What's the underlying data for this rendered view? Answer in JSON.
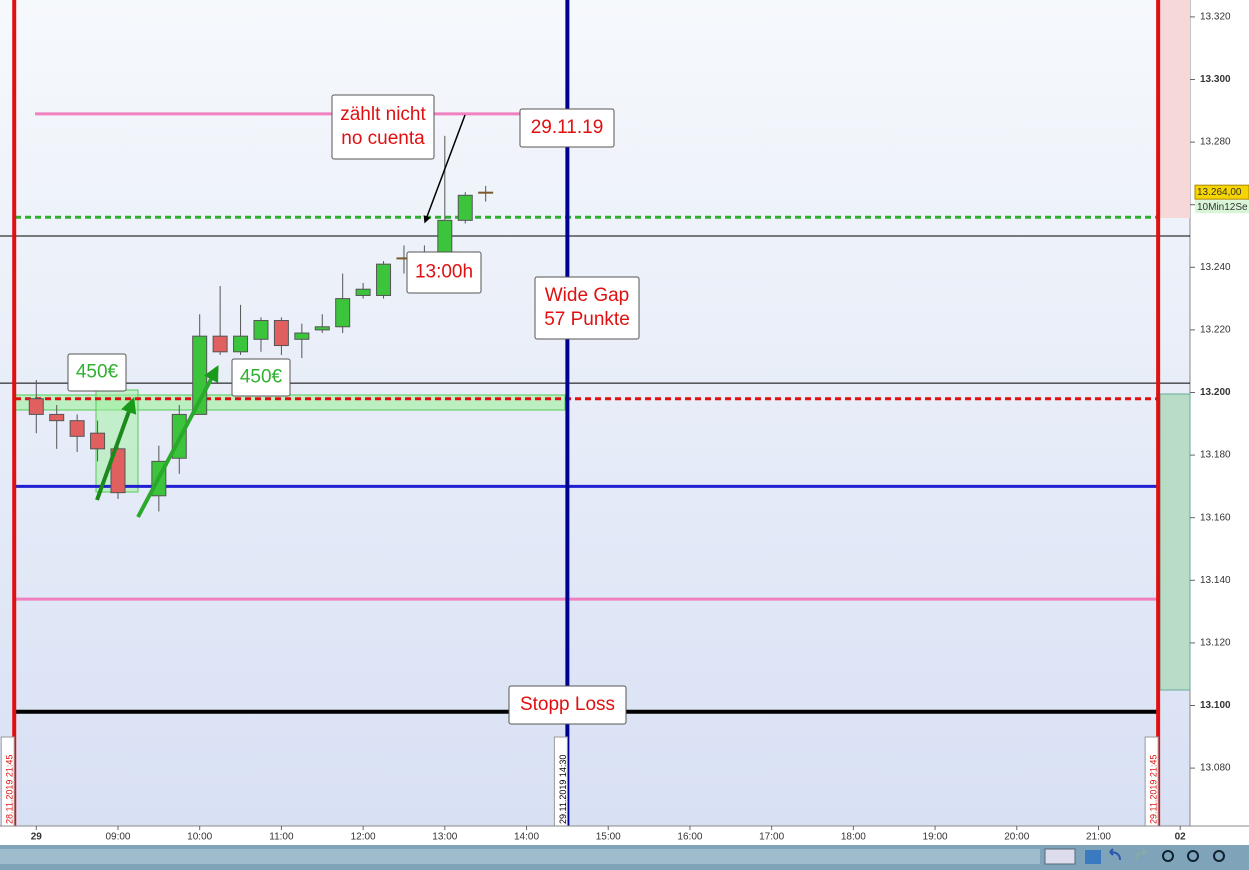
{
  "chart_data": {
    "type": "candlestick",
    "x": [
      8,
      8.25,
      8.5,
      8.75,
      9,
      9.5,
      9.75,
      10,
      10.25,
      10.5,
      10.75,
      11,
      11.25,
      11.5,
      11.75,
      12,
      12.25,
      12.5,
      12.75,
      13,
      13.25,
      13.5
    ],
    "open": [
      13198,
      13193,
      13191,
      13187,
      13182,
      13167,
      13179,
      13193,
      13218,
      13213,
      13217,
      13223,
      13217,
      13220,
      13221,
      13231,
      13231,
      13243,
      13243,
      13243,
      13255,
      13264
    ],
    "close": [
      13193,
      13191,
      13186,
      13182,
      13168,
      13178,
      13193,
      13218,
      13213,
      13218,
      13223,
      13215,
      13219,
      13221,
      13230,
      13233,
      13241,
      13243,
      13244,
      13255,
      13263,
      13264
    ],
    "high": [
      13204,
      13196,
      13193,
      13191,
      13185,
      13183,
      13196,
      13225,
      13234,
      13228,
      13224,
      13224,
      13222,
      13225,
      13238,
      13235,
      13242,
      13247,
      13247,
      13282,
      13264,
      13266
    ],
    "low": [
      13187,
      13182,
      13181,
      13178,
      13166,
      13162,
      13174,
      13193,
      13212,
      13212,
      13213,
      13212,
      13211,
      13219,
      13219,
      13230,
      13230,
      13238,
      13242,
      13242,
      13254,
      13261
    ],
    "up_color": "#3cc43c",
    "down_color": "#e06060",
    "xlim": [
      7.556,
      22.12
    ],
    "ylim": [
      13061.5,
      13325.4
    ],
    "xticks": [
      {
        "value": 8,
        "label": "29"
      },
      {
        "value": 9,
        "label": "09:00"
      },
      {
        "value": 10,
        "label": "10:00"
      },
      {
        "value": 11,
        "label": "11:00"
      },
      {
        "value": 12,
        "label": "12:00"
      },
      {
        "value": 13,
        "label": "13:00"
      },
      {
        "value": 14,
        "label": "14:00"
      },
      {
        "value": 15,
        "label": "15:00"
      },
      {
        "value": 16,
        "label": "16:00"
      },
      {
        "value": 17,
        "label": "17:00"
      },
      {
        "value": 18,
        "label": "18:00"
      },
      {
        "value": 19,
        "label": "19:00"
      },
      {
        "value": 20,
        "label": "20:00"
      },
      {
        "value": 21,
        "label": "21:00"
      },
      {
        "value": 22,
        "label": "02"
      }
    ],
    "yticks": [
      {
        "value": 13080,
        "label": "13.080"
      },
      {
        "value": 13100,
        "label": "13.100"
      },
      {
        "value": 13120,
        "label": "13.120"
      },
      {
        "value": 13140,
        "label": "13.140"
      },
      {
        "value": 13160,
        "label": "13.160"
      },
      {
        "value": 13180,
        "label": "13.180"
      },
      {
        "value": 13200,
        "label": "13.200"
      },
      {
        "value": 13220,
        "label": "13.220"
      },
      {
        "value": 13240,
        "label": "13.240"
      },
      {
        "value": 13260,
        "label": "13.260"
      },
      {
        "value": 13280,
        "label": "13.280"
      },
      {
        "value": 13300,
        "label": "13.300"
      },
      {
        "value": 13320,
        "label": "13.320"
      }
    ],
    "levels": [
      {
        "value": 13289,
        "color": "#f080c0",
        "dashed": false
      },
      {
        "value": 13256,
        "color": "#30b030",
        "dashed": true
      },
      {
        "value": 13250,
        "color": "#000000",
        "dashed": false
      },
      {
        "value": 13203,
        "color": "#000000",
        "dashed": false
      },
      {
        "value": 13198,
        "color": "#e01010",
        "dashed": true
      },
      {
        "value": 13170,
        "color": "#2020d0",
        "dashed": false
      },
      {
        "value": 13134,
        "color": "#f080c0",
        "dashed": false
      },
      {
        "value": 13098,
        "color": "#000000",
        "dashed": false
      }
    ],
    "vlines": [
      {
        "x": 7.73,
        "label": "28.11.2019 21:45",
        "color": "#e01010"
      },
      {
        "x": 14.5,
        "label": "29.11.2019 14:30",
        "color": "#000090"
      },
      {
        "x": 21.73,
        "label": "29.11.2019 21:45",
        "color": "#e01010"
      }
    ],
    "last_price": {
      "value": 13264,
      "label": "13.264,00"
    },
    "indicator": "10Min12Se",
    "annotations": [
      {
        "lines": [
          "zählt nicht",
          "no cuenta"
        ],
        "color": "#e01010"
      },
      {
        "lines": [
          "29.11.19"
        ],
        "color": "#e01010"
      },
      {
        "lines": [
          "13:00h"
        ],
        "color": "#e01010"
      },
      {
        "lines": [
          "Wide Gap",
          "57 Punkte"
        ],
        "color": "#e01010"
      },
      {
        "lines": [
          "450€"
        ],
        "color": "#30b030"
      },
      {
        "lines": [
          "450€"
        ],
        "color": "#30b030"
      },
      {
        "lines": [
          "Stopp Loss"
        ],
        "color": "#e01010"
      }
    ]
  }
}
